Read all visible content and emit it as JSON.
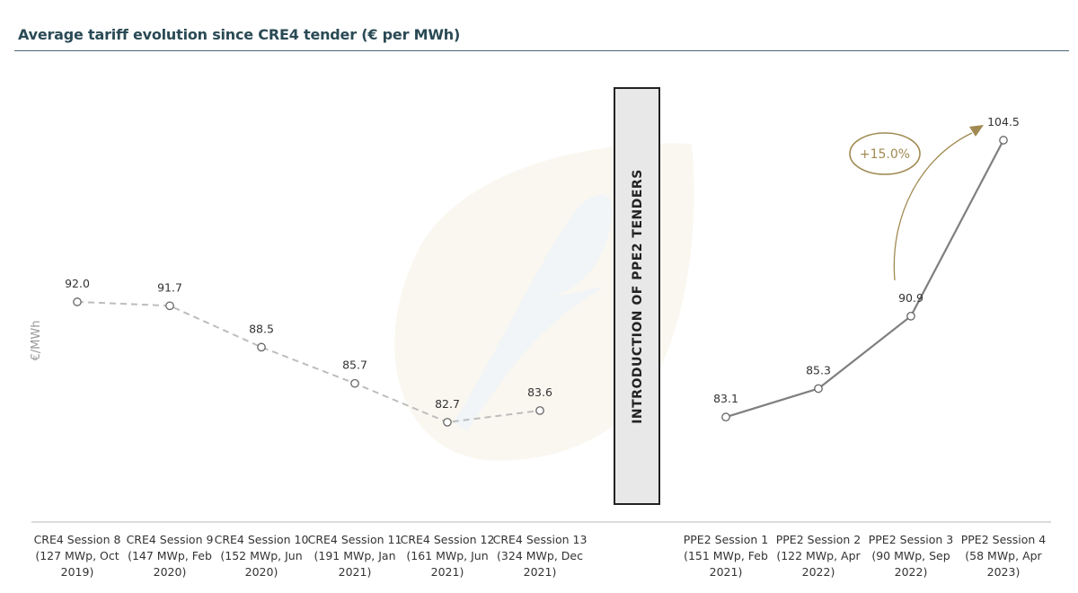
{
  "title": "Average tariff evolution since CRE4 tender (€ per MWh)",
  "colors": {
    "title": "#2a4a55",
    "cre4_line": "#bdbdbd",
    "ppe2_line": "#7f7f7f",
    "accent": "#a08a52",
    "banner_fill": "#e8e8e8"
  },
  "chart_data": {
    "type": "line",
    "title": "Average tariff evolution since CRE4 tender (€ per MWh)",
    "ylabel": "€/MWh",
    "xlabel": "",
    "ylim": [
      78,
      108
    ],
    "grid": false,
    "separator_label": "INTRODUCTION OF PPE2 TENDERS",
    "series": [
      {
        "style": "dashed",
        "categories": [
          [
            "CRE4 Session 8",
            "(127 MWp, Oct",
            "2019)"
          ],
          [
            "CRE4 Session 9",
            "(147 MWp, Feb",
            "2020)"
          ],
          [
            "CRE4 Session 10",
            "(152 MWp, Jun",
            "2020)"
          ],
          [
            "CRE4 Session 11",
            "(191 MWp, Jan",
            "2021)"
          ],
          [
            "CRE4 Session 12",
            "(161 MWp, Jun",
            "2021)"
          ],
          [
            "CRE4 Session 13",
            "(324 MWp, Dec",
            "2021)"
          ]
        ],
        "values": [
          92.0,
          91.7,
          88.5,
          85.7,
          82.7,
          83.6
        ],
        "labels": [
          "92.0",
          "91.7",
          "88.5",
          "85.7",
          "82.7",
          "83.6"
        ]
      },
      {
        "style": "solid",
        "categories": [
          [
            "PPE2 Session 1",
            "(151 MWp, Feb",
            "2021)"
          ],
          [
            "PPE2 Session 2",
            "(122 MWp, Apr",
            "2022)"
          ],
          [
            "PPE2 Session 3",
            "(90 MWp, Sep",
            "2022)"
          ],
          [
            "PPE2 Session 4",
            "(58 MWp, Apr",
            "2023)"
          ]
        ],
        "values": [
          83.1,
          85.3,
          90.9,
          104.5
        ],
        "labels": [
          "83.1",
          "85.3",
          "90.9",
          "104.5"
        ]
      }
    ],
    "annotations": [
      {
        "text": "+15.0%",
        "from_series": 1,
        "from_index": 2,
        "to_index": 3
      }
    ]
  }
}
